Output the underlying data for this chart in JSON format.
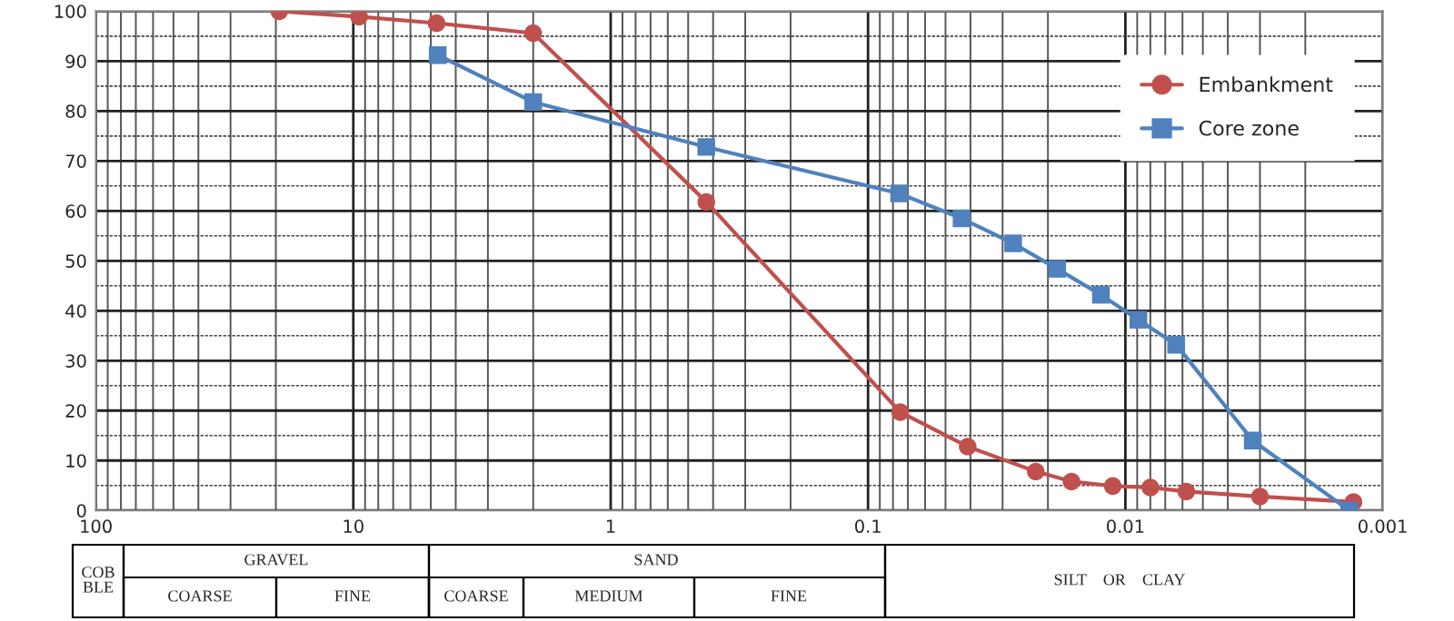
{
  "chart_data": {
    "type": "line",
    "log": "x",
    "grid": true,
    "legend": "top right",
    "xlim": [
      100,
      0.001
    ],
    "xticks": [
      100,
      10,
      1,
      0.1,
      0.01,
      0.001
    ],
    "ylim": [
      0,
      100
    ],
    "yticks": [
      0,
      10,
      20,
      30,
      40,
      50,
      60,
      70,
      80,
      90,
      100
    ],
    "series": [
      {
        "name": "Embankment",
        "color": "#c0504d",
        "marker": "circle",
        "x": [
          19.4,
          9.5,
          4.75,
          2.0,
          0.425,
          0.075,
          0.041,
          0.0223,
          0.0162,
          0.0112,
          0.008,
          0.0058,
          0.003,
          0.0013
        ],
        "values": [
          100,
          98.9,
          97.6,
          95.6,
          61.8,
          19.7,
          12.8,
          7.8,
          5.8,
          4.9,
          4.6,
          3.8,
          2.8,
          1.7
        ]
      },
      {
        "name": "Core zone",
        "color": "#4f81bd",
        "marker": "square",
        "x": [
          4.7,
          2.0,
          0.425,
          0.0757,
          0.0433,
          0.0273,
          0.0184,
          0.01245,
          0.0089,
          0.00635,
          0.0032,
          0.00135
        ],
        "values": [
          91.2,
          81.8,
          72.8,
          63.5,
          58.5,
          53.5,
          48.4,
          43.2,
          38.2,
          33.2,
          14,
          0
        ]
      }
    ],
    "annotations": [
      "COB\nBLE",
      "GRAVEL",
      "COARSE",
      "FINE",
      "SAND",
      "COARSE",
      "MEDIUM",
      "FINE",
      "SILT    OR    CLAY"
    ]
  }
}
